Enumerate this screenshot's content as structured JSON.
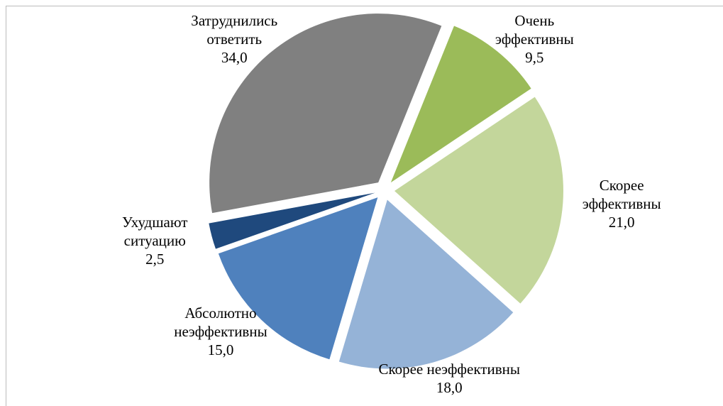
{
  "chart_data": {
    "type": "pie",
    "categories": [
      "Очень эффективны",
      "Скорее эффективны",
      "Скорее неэффективны",
      "Абсолютно неэффективны",
      "Ухудшают ситуацию",
      "Затруднились ответить"
    ],
    "values": [
      9.5,
      21.0,
      18.0,
      15.0,
      2.5,
      34.0
    ],
    "value_labels": [
      "9,5",
      "21,0",
      "18,0",
      "15,0",
      "2,5",
      "34,0"
    ],
    "colors": [
      "#9bbb59",
      "#c3d69b",
      "#95b3d7",
      "#4f81bd",
      "#1f497d",
      "#808080"
    ]
  }
}
